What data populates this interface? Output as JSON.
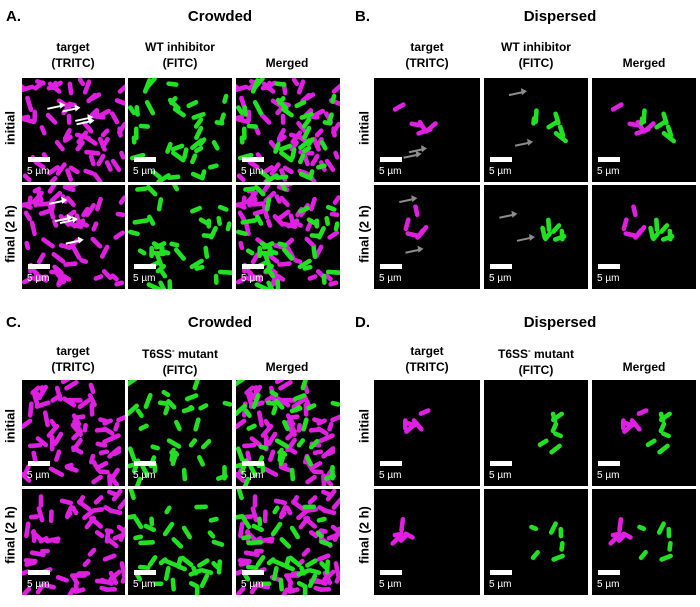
{
  "panels": [
    {
      "letter": "A.",
      "title": "Crowded",
      "col1": [
        "target",
        "(TRITC)"
      ],
      "col2": [
        "WT inhibitor",
        "(FITC)"
      ],
      "col3": "Merged",
      "row1": "initial",
      "row2": "final (2 h)",
      "scale": "5 µm",
      "density": "crowded",
      "arrows": "white"
    },
    {
      "letter": "B.",
      "title": "Dispersed",
      "col1": [
        "target",
        "(TRITC)"
      ],
      "col2": [
        "WT inhibitor",
        "(FITC)"
      ],
      "col3": "Merged",
      "row1": "initial",
      "row2": "final (2 h)",
      "scale": "5 µm",
      "density": "dispersed",
      "arrows": "gray"
    },
    {
      "letter": "C.",
      "title": "Crowded",
      "col1": [
        "target",
        "(TRITC)"
      ],
      "col2_pre": "T6SS",
      "col2_sup": "-",
      "col2_post": " mutant",
      "col2b": "(FITC)",
      "col3": "Merged",
      "row1": "initial",
      "row2": "final (2 h)",
      "scale": "5 µm",
      "density": "crowded",
      "arrows": "none"
    },
    {
      "letter": "D.",
      "title": "Dispersed",
      "col1": [
        "target",
        "(TRITC)"
      ],
      "col2_pre": "T6SS",
      "col2_sup": "-",
      "col2_post": " mutant",
      "col2b": "(FITC)",
      "col3": "Merged",
      "row1": "initial",
      "row2": "final (2 h)",
      "scale": "5 µm",
      "density": "dispersed",
      "arrows": "none"
    }
  ],
  "colors": {
    "target": "#e020e0",
    "inhibitor": "#22e022",
    "background": "#000000",
    "arrow_white": "#ffffff",
    "arrow_gray": "#8c8c8c"
  }
}
